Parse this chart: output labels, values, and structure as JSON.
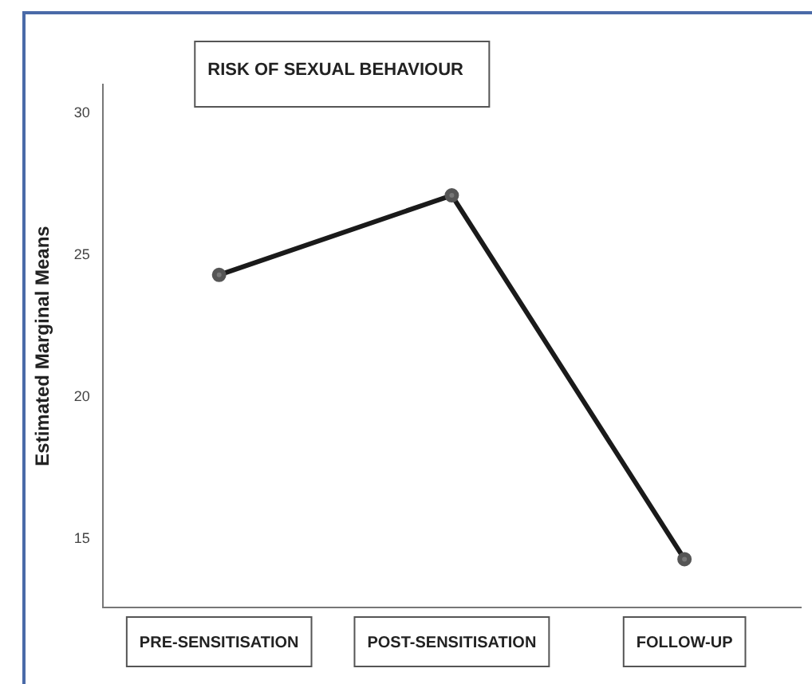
{
  "chart_data": {
    "type": "line",
    "title": "RISK OF SEXUAL BEHAVIOUR",
    "ylabel": "Estimated Marginal Means",
    "categories": [
      "PRE-SENSITISATION",
      "POST-SENSITISATION",
      "FOLLOW-UP"
    ],
    "series": [
      {
        "color": "#1a1a1a",
        "values": [
          24.3,
          27.1,
          14.3
        ]
      }
    ],
    "ylim": [
      12.6,
      31
    ],
    "yticks": [
      15,
      20,
      25,
      30
    ],
    "grid": false,
    "legend": false,
    "marker": "circle",
    "line_style": "solid"
  }
}
